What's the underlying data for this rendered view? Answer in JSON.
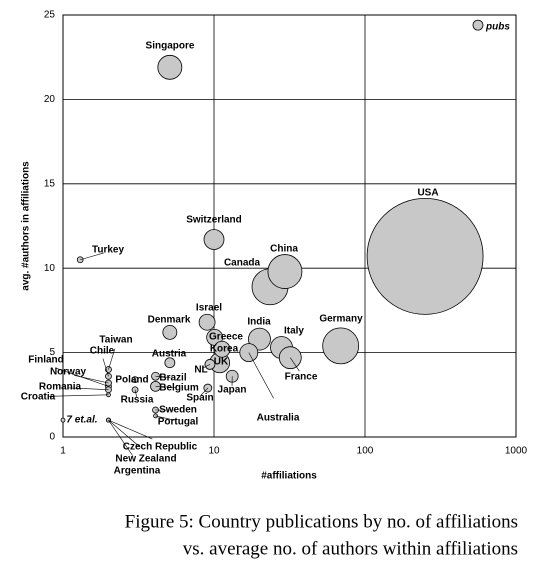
{
  "chart_data": {
    "type": "bubble",
    "xlabel": "#affiliations",
    "ylabel": "avg. #authors in affiliations",
    "xlog": true,
    "xlim": [
      1,
      1000
    ],
    "ylim": [
      0,
      25
    ],
    "xticks": [
      1,
      10,
      100,
      1000
    ],
    "yticks": [
      0,
      5,
      10,
      15,
      20,
      25
    ],
    "grid": true,
    "color": "#c8c8c8",
    "labels": [
      "Singapore",
      "Switzerland",
      "Turkey",
      "USA",
      "China",
      "Canada",
      "Germany",
      "Israel",
      "Denmark",
      "India",
      "Italy",
      "France",
      "Greece",
      "Korea",
      "UK",
      "Australia",
      "Japan",
      "NL",
      "Spain",
      "Austria",
      "Brazil",
      "Belgium",
      "Poland",
      "Russia",
      "Sweden",
      "Portugal",
      "Taiwan",
      "Chile",
      "Finland",
      "Norway",
      "Romania",
      "Croatia",
      "Czech Republic",
      "New Zealand",
      "Argentina",
      "7 et.al.",
      "pubs"
    ],
    "x": [
      5.1,
      10,
      1.3,
      250,
      29.5,
      23.5,
      69,
      9,
      5.1,
      20,
      28,
      32,
      10.1,
      11.3,
      10.9,
      17,
      13.2,
      9.4,
      9.1,
      5.1,
      4.1,
      4.1,
      3,
      3,
      4.1,
      4.1,
      2,
      2,
      2,
      2,
      2,
      2,
      2,
      2,
      2,
      1,
      560
    ],
    "values": [
      21.9,
      11.7,
      10.5,
      10.7,
      9.8,
      8.9,
      5.4,
      6.8,
      6.2,
      5.8,
      5.3,
      4.7,
      5.9,
      5.2,
      4.4,
      5.0,
      3.6,
      4.3,
      2.9,
      4.4,
      3.6,
      3.0,
      3.4,
      2.8,
      1.6,
      1.25,
      4.0,
      3.6,
      3.0,
      3.2,
      2.8,
      2.5,
      1.0,
      1.0,
      1.0,
      1.0,
      24.4
    ],
    "sizes": [
      144,
      100,
      9,
      3364,
      289,
      324,
      324,
      64,
      49,
      121,
      121,
      121,
      64,
      64,
      100,
      81,
      36,
      25,
      16,
      25,
      16,
      25,
      9,
      9,
      9,
      4,
      9,
      9,
      9,
      9,
      9,
      4,
      4,
      4,
      4,
      4,
      25
    ],
    "italic": [
      false,
      false,
      false,
      false,
      false,
      false,
      false,
      false,
      false,
      false,
      false,
      false,
      false,
      false,
      false,
      false,
      false,
      false,
      false,
      false,
      false,
      false,
      false,
      false,
      false,
      false,
      false,
      false,
      false,
      false,
      false,
      false,
      false,
      false,
      false,
      true,
      true
    ],
    "caption": [
      "Figure 5: Country publications by no. of affiliations",
      "vs. average no. of authors within affiliations"
    ]
  }
}
